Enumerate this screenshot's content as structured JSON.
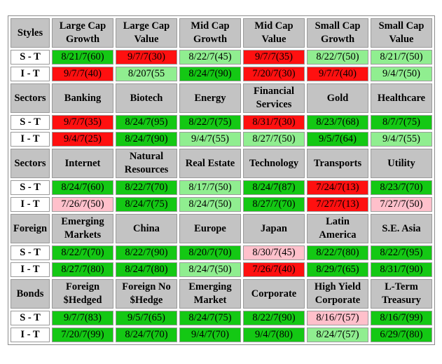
{
  "colors": {
    "green": "#14c814",
    "light_green": "#90ee90",
    "red": "#ff1010",
    "pink": "#ffc0cb",
    "header_gray": "#c3c3c3"
  },
  "groups": [
    {
      "category": "Styles",
      "headers": [
        [
          "Large Cap",
          "Growth"
        ],
        [
          "Large Cap",
          "Value"
        ],
        [
          "Mid Cap",
          "Growth"
        ],
        [
          "Mid Cap",
          "Value"
        ],
        [
          "Small Cap",
          "Growth"
        ],
        [
          "Small Cap",
          "Value"
        ]
      ],
      "rows": [
        {
          "label": "S - T",
          "cells": [
            {
              "text": "8/21/7(60)",
              "color": "green"
            },
            {
              "text": "9/7/7(30)",
              "color": "red"
            },
            {
              "text": "8/22/7(45)",
              "color": "light_green"
            },
            {
              "text": "9/7/7(35)",
              "color": "red"
            },
            {
              "text": "8/22/7(50)",
              "color": "light_green"
            },
            {
              "text": "8/21/7(50)",
              "color": "light_green"
            }
          ]
        },
        {
          "label": "I - T",
          "cells": [
            {
              "text": "9/7/7(40)",
              "color": "red"
            },
            {
              "text": "8/207(55",
              "color": "light_green"
            },
            {
              "text": "8/24/7(90)",
              "color": "green"
            },
            {
              "text": "7/20/7(30)",
              "color": "red"
            },
            {
              "text": "9/7/7(40)",
              "color": "red"
            },
            {
              "text": "9/4/7(50)",
              "color": "light_green"
            }
          ]
        }
      ]
    },
    {
      "category": "Sectors",
      "headers": [
        [
          "Banking"
        ],
        [
          "Biotech"
        ],
        [
          "Energy"
        ],
        [
          "Financial",
          "Services"
        ],
        [
          "Gold"
        ],
        [
          "Healthcare"
        ]
      ],
      "rows": [
        {
          "label": "S - T",
          "cells": [
            {
              "text": "9/7/7(35)",
              "color": "red"
            },
            {
              "text": "8/24/7(95)",
              "color": "green"
            },
            {
              "text": "8/22/7(75)",
              "color": "green"
            },
            {
              "text": "8/31/7(30)",
              "color": "red"
            },
            {
              "text": "8/23/7(68)",
              "color": "green"
            },
            {
              "text": "8/7/7(75)",
              "color": "green"
            }
          ]
        },
        {
          "label": "I - T",
          "cells": [
            {
              "text": "9/4/7(25)",
              "color": "red"
            },
            {
              "text": "8/24/7(90)",
              "color": "green"
            },
            {
              "text": "9/4/7(55)",
              "color": "light_green"
            },
            {
              "text": "8/27/7(50)",
              "color": "light_green"
            },
            {
              "text": "9/5/7(64)",
              "color": "green"
            },
            {
              "text": "9/4/7(55)",
              "color": "light_green"
            }
          ]
        }
      ]
    },
    {
      "category": "Sectors",
      "headers": [
        [
          "Internet"
        ],
        [
          "Natural",
          "Resources"
        ],
        [
          "Real Estate"
        ],
        [
          "Technology"
        ],
        [
          "Transports"
        ],
        [
          "Utility"
        ]
      ],
      "rows": [
        {
          "label": "S - T",
          "cells": [
            {
              "text": "8/24/7(60)",
              "color": "green"
            },
            {
              "text": "8/22/7(70)",
              "color": "green"
            },
            {
              "text": "8/17/7(50)",
              "color": "light_green"
            },
            {
              "text": "8/24/7(87)",
              "color": "green"
            },
            {
              "text": "7/24/7(13)",
              "color": "red"
            },
            {
              "text": "8/23/7(70)",
              "color": "green"
            }
          ]
        },
        {
          "label": "I - T",
          "cells": [
            {
              "text": "7/26/7(50)",
              "color": "pink"
            },
            {
              "text": "8/24/7(75)",
              "color": "green"
            },
            {
              "text": "8/24/7(50)",
              "color": "light_green"
            },
            {
              "text": "8/27/7(70)",
              "color": "green"
            },
            {
              "text": "7/27/7(13)",
              "color": "red"
            },
            {
              "text": "7/27/7(50)",
              "color": "pink"
            }
          ]
        }
      ]
    },
    {
      "category": "Foreign",
      "headers": [
        [
          "Emerging",
          "Markets"
        ],
        [
          "China"
        ],
        [
          "Europe"
        ],
        [
          "Japan"
        ],
        [
          "Latin",
          "America"
        ],
        [
          "S.E. Asia"
        ]
      ],
      "rows": [
        {
          "label": "S - T",
          "cells": [
            {
              "text": "8/22/7(70)",
              "color": "green"
            },
            {
              "text": "8/22/7(90)",
              "color": "green"
            },
            {
              "text": "8/20/7(70)",
              "color": "green"
            },
            {
              "text": "8/30/7(45)",
              "color": "pink"
            },
            {
              "text": "8/22/7(80)",
              "color": "green"
            },
            {
              "text": "8/22/7(95)",
              "color": "green"
            }
          ]
        },
        {
          "label": "I - T",
          "cells": [
            {
              "text": "8/27/7(80)",
              "color": "green"
            },
            {
              "text": "8/24/7(80)",
              "color": "green"
            },
            {
              "text": "8/24/7(50)",
              "color": "light_green"
            },
            {
              "text": "7/26/7(40)",
              "color": "red"
            },
            {
              "text": "8/29/7(65)",
              "color": "green"
            },
            {
              "text": "8/31/7(90)",
              "color": "green"
            }
          ]
        }
      ]
    },
    {
      "category": "Bonds",
      "headers": [
        [
          "Foreign",
          "$Hedged"
        ],
        [
          "Foreign No",
          "$Hedge"
        ],
        [
          "Emerging",
          "Market"
        ],
        [
          "Corporate"
        ],
        [
          "High Yield",
          "Corporate"
        ],
        [
          "L-Term",
          "Treasury"
        ]
      ],
      "rows": [
        {
          "label": "S - T",
          "cells": [
            {
              "text": "9/7/7(83)",
              "color": "green"
            },
            {
              "text": "9/5/7(65)",
              "color": "green"
            },
            {
              "text": "8/24/7(75)",
              "color": "green"
            },
            {
              "text": "8/22/7(90)",
              "color": "green"
            },
            {
              "text": "8/16/7(57)",
              "color": "pink"
            },
            {
              "text": "8/16/7(99)",
              "color": "green"
            }
          ]
        },
        {
          "label": "I - T",
          "cells": [
            {
              "text": "7/20/7(99)",
              "color": "green"
            },
            {
              "text": "8/24/7(70)",
              "color": "green"
            },
            {
              "text": "9/4/7(70)",
              "color": "green"
            },
            {
              "text": "9/4/7(80)",
              "color": "green"
            },
            {
              "text": "8/24/7(57)",
              "color": "light_green"
            },
            {
              "text": "6/29/7(80)",
              "color": "green"
            }
          ]
        }
      ]
    }
  ]
}
